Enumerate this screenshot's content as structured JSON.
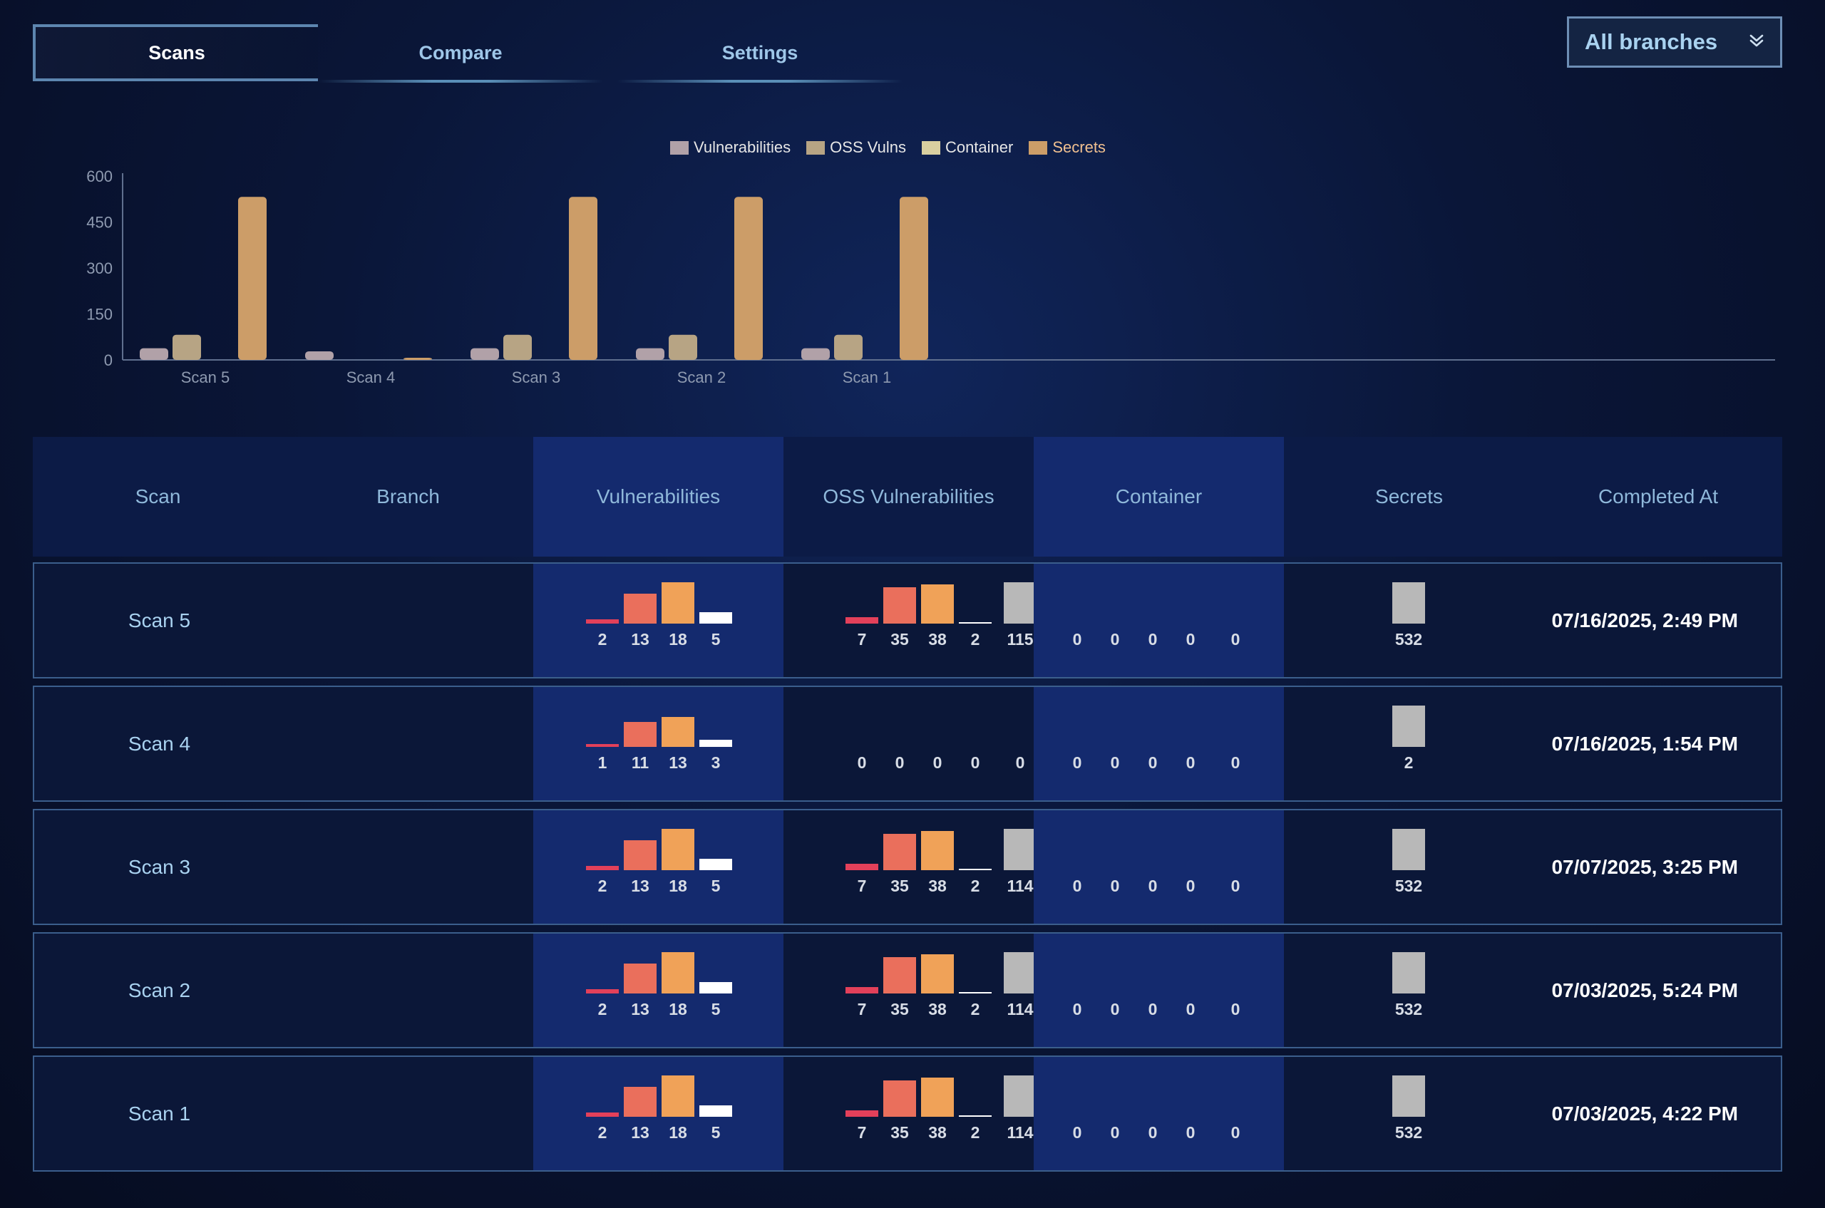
{
  "tabs": [
    {
      "label": "Scans",
      "active": true
    },
    {
      "label": "Compare",
      "active": false
    },
    {
      "label": "Settings",
      "active": false
    }
  ],
  "branch_selector": {
    "value": "All branches",
    "icon": "chevron-double-down-icon"
  },
  "colors": {
    "vulnerabilities": "#b1a1a8",
    "oss_vulns": "#b7a484",
    "container": "#d9cfa0",
    "secrets": "#cc9d68",
    "critical": "#e3405a",
    "high": "#ea6f5c",
    "medium": "#f0a258",
    "low": "#ffffff",
    "other": "#b8b8b8"
  },
  "chart_data": {
    "type": "bar",
    "categories": [
      "Scan 5",
      "Scan 4",
      "Scan 3",
      "Scan 2",
      "Scan 1"
    ],
    "series": [
      {
        "name": "Vulnerabilities",
        "values": [
          38,
          28,
          38,
          38,
          38
        ]
      },
      {
        "name": "OSS Vulns",
        "values": [
          82,
          0,
          82,
          82,
          82
        ]
      },
      {
        "name": "Container",
        "values": [
          0,
          0,
          0,
          0,
          0
        ]
      },
      {
        "name": "Secrets",
        "values": [
          532,
          2,
          532,
          532,
          532
        ]
      }
    ],
    "yticks": [
      0,
      150,
      300,
      450,
      600
    ],
    "ylim": [
      0,
      600
    ],
    "title": "",
    "xlabel": "",
    "ylabel": "",
    "legend_position": "top-center"
  },
  "table": {
    "headers": [
      "Scan",
      "Branch",
      "Vulnerabilities",
      "OSS Vulnerabilities",
      "Container",
      "Secrets",
      "Completed At"
    ],
    "rows": [
      {
        "scan": "Scan 5",
        "branch": "",
        "vulns": [
          2,
          13,
          18,
          5
        ],
        "oss": [
          7,
          35,
          38,
          2,
          115
        ],
        "container": [
          0,
          0,
          0,
          0,
          0
        ],
        "secrets": [
          532
        ],
        "completed": "07/16/2025, 2:49 PM"
      },
      {
        "scan": "Scan 4",
        "branch": "",
        "vulns": [
          1,
          11,
          13,
          3
        ],
        "oss": [
          0,
          0,
          0,
          0,
          0
        ],
        "container": [
          0,
          0,
          0,
          0,
          0
        ],
        "secrets": [
          2
        ],
        "completed": "07/16/2025, 1:54 PM"
      },
      {
        "scan": "Scan 3",
        "branch": "",
        "vulns": [
          2,
          13,
          18,
          5
        ],
        "oss": [
          7,
          35,
          38,
          2,
          114
        ],
        "container": [
          0,
          0,
          0,
          0,
          0
        ],
        "secrets": [
          532
        ],
        "completed": "07/07/2025, 3:25 PM"
      },
      {
        "scan": "Scan 2",
        "branch": "",
        "vulns": [
          2,
          13,
          18,
          5
        ],
        "oss": [
          7,
          35,
          38,
          2,
          114
        ],
        "container": [
          0,
          0,
          0,
          0,
          0
        ],
        "secrets": [
          532
        ],
        "completed": "07/03/2025, 5:24 PM"
      },
      {
        "scan": "Scan 1",
        "branch": "",
        "vulns": [
          2,
          13,
          18,
          5
        ],
        "oss": [
          7,
          35,
          38,
          2,
          114
        ],
        "container": [
          0,
          0,
          0,
          0,
          0
        ],
        "secrets": [
          532
        ],
        "completed": "07/03/2025, 4:22 PM"
      }
    ]
  }
}
